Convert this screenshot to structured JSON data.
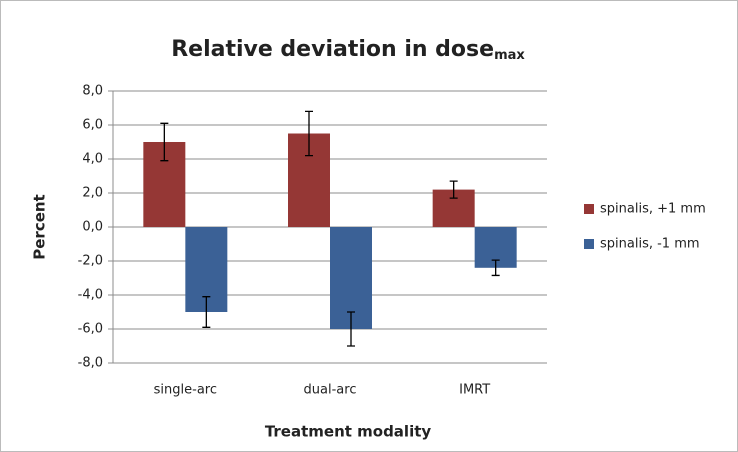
{
  "chart_data": {
    "type": "bar",
    "title": "Relative deviation in dose",
    "title_subscript": "max",
    "x_label": "Treatment modality",
    "y_label": "Percent",
    "categories": [
      "single-arc",
      "dual-arc",
      "IMRT"
    ],
    "series": [
      {
        "name": "spinalis, +1 mm",
        "color": "#953735",
        "values": [
          5.0,
          5.5,
          2.2
        ],
        "errors": [
          1.1,
          1.3,
          0.5
        ]
      },
      {
        "name": "spinalis, -1 mm",
        "color": "#3b6196",
        "values": [
          -5.0,
          -6.0,
          -2.4
        ],
        "errors": [
          0.9,
          1.0,
          0.45
        ]
      }
    ],
    "ylim": [
      -8,
      8
    ],
    "yticks": [
      {
        "value": -8,
        "label": "-8,0"
      },
      {
        "value": -6,
        "label": "-6,0"
      },
      {
        "value": -4,
        "label": "-4,0"
      },
      {
        "value": -2,
        "label": "-2,0"
      },
      {
        "value": 0,
        "label": "0,0"
      },
      {
        "value": 2,
        "label": "2,0"
      },
      {
        "value": 4,
        "label": "4,0"
      },
      {
        "value": 6,
        "label": "6,0"
      },
      {
        "value": 8,
        "label": "8,0"
      }
    ],
    "grid": true,
    "legend": "right"
  }
}
